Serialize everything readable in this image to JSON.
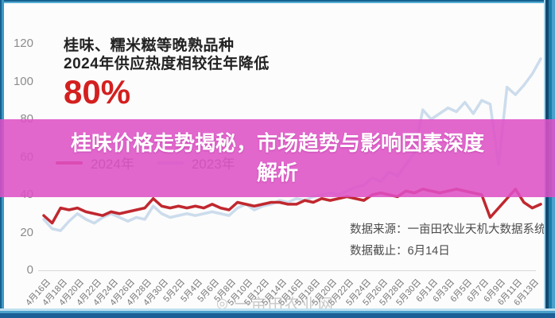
{
  "infobox": {
    "line1": "桂味、糯米糍等晚熟品种",
    "line2": "2024年供应热度相较往年降低",
    "highlight": "80%"
  },
  "overlay": {
    "title_line1": "桂味价格走势揭秘，市场趋势与影响因素深度",
    "title_line2": "解析"
  },
  "legend": [
    {
      "label": "2024年",
      "color": "#c0282f"
    },
    {
      "label": "2023年",
      "color": "#ccdcec"
    }
  ],
  "footer": {
    "source_line": "数据来源：一亩田农业天机大数据系统",
    "cutoff_line": "数据截止：6月14日"
  },
  "watermark": {
    "logo_icon": "◎",
    "text": "一亩田农业网"
  },
  "colors": {
    "banner": "#de50c6",
    "highlight_red": "#d3201f",
    "series_2024": "#c0282f",
    "series_2023": "#ccdcec",
    "frame_blue": "#1b7fae"
  },
  "chart_data": {
    "type": "line",
    "title": "",
    "xlabel": "",
    "ylabel": "",
    "ylim": [
      0,
      120
    ],
    "yticks": [
      0,
      20,
      40,
      60,
      80,
      100,
      120
    ],
    "grid": false,
    "legend_position": "upper-left",
    "x_tick_labels": [
      "4月16日",
      "4月18日",
      "4月20日",
      "4月22日",
      "4月24日",
      "4月26日",
      "4月28日",
      "4月30日",
      "5月2日",
      "5月4日",
      "5月6日",
      "5月8日",
      "5月10日",
      "5月12日",
      "5月14日",
      "5月16日",
      "5月18日",
      "5月20日",
      "5月22日",
      "5月24日",
      "5月26日",
      "5月28日",
      "5月30日",
      "6月1日",
      "6月3日",
      "6月5日",
      "6月7日",
      "6月9日",
      "6月11日",
      "6月13日"
    ],
    "x_note_labels_every_n_days": 2,
    "series": [
      {
        "name": "2024年",
        "color": "#c0282f",
        "values": [
          29,
          25,
          33,
          32,
          33,
          31,
          30,
          29,
          31,
          30,
          31,
          32,
          33,
          38,
          34,
          33,
          34,
          33,
          34,
          33,
          35,
          33,
          32,
          36,
          35,
          34,
          35,
          36,
          36,
          35,
          35,
          37,
          36,
          38,
          37,
          38,
          39,
          38,
          37,
          40,
          41,
          40,
          39,
          42,
          41,
          43,
          42,
          41,
          42,
          43,
          42,
          41,
          40,
          28,
          33,
          38,
          43,
          36,
          33,
          35
        ]
      },
      {
        "name": "2023年",
        "color": "#ccdcec",
        "values": [
          27,
          22,
          21,
          26,
          30,
          27,
          25,
          28,
          30,
          28,
          26,
          28,
          27,
          34,
          30,
          28,
          29,
          30,
          29,
          30,
          31,
          30,
          29,
          33,
          35,
          32,
          34,
          35,
          37,
          36,
          38,
          37,
          39,
          40,
          41,
          40,
          42,
          44,
          45,
          49,
          47,
          52,
          50,
          56,
          62,
          85,
          80,
          83,
          86,
          84,
          89,
          83,
          90,
          88,
          56,
          97,
          93,
          98,
          104,
          112
        ]
      }
    ]
  }
}
